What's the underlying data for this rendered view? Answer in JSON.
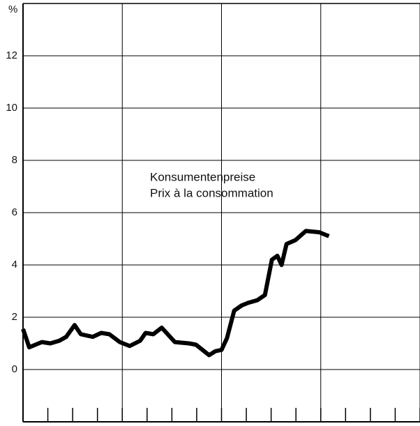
{
  "chart_data": {
    "type": "line",
    "ylabel": "%",
    "annotations": [
      "Konsumentenpreise",
      "Prix à la consommation"
    ],
    "x": [
      0,
      0.25,
      0.76,
      1.1,
      1.46,
      1.74,
      2.08,
      2.33,
      2.81,
      3.15,
      3.48,
      3.9,
      4.3,
      4.72,
      4.94,
      5.25,
      5.59,
      6.12,
      6.69,
      6.97,
      7.5,
      7.75,
      8.0,
      8.22,
      8.51,
      8.81,
      9.07,
      9.44,
      9.75,
      10.03,
      10.25,
      10.42,
      10.62,
      10.98,
      11.4,
      11.94,
      12.33
    ],
    "series": [
      {
        "color": "#000000",
        "values": [
          1.55,
          0.85,
          1.05,
          1.0,
          1.1,
          1.25,
          1.7,
          1.35,
          1.25,
          1.4,
          1.35,
          1.05,
          0.9,
          1.1,
          1.4,
          1.35,
          1.6,
          1.05,
          1.0,
          0.95,
          0.55,
          0.7,
          0.75,
          1.2,
          2.25,
          2.45,
          2.55,
          2.65,
          2.85,
          4.2,
          4.35,
          4.0,
          4.8,
          4.95,
          5.3,
          5.25,
          5.1
        ]
      }
    ],
    "xlim": [
      0,
      16
    ],
    "xticks": [
      0,
      1,
      2,
      3,
      4,
      5,
      6,
      7,
      8,
      9,
      10,
      11,
      12,
      13,
      14,
      15,
      16
    ],
    "xgrid": [
      0,
      4,
      8,
      12,
      16
    ],
    "ylim": [
      -2,
      14
    ],
    "yticks": [
      0,
      2,
      4,
      6,
      8,
      10,
      12
    ],
    "grid": true
  }
}
